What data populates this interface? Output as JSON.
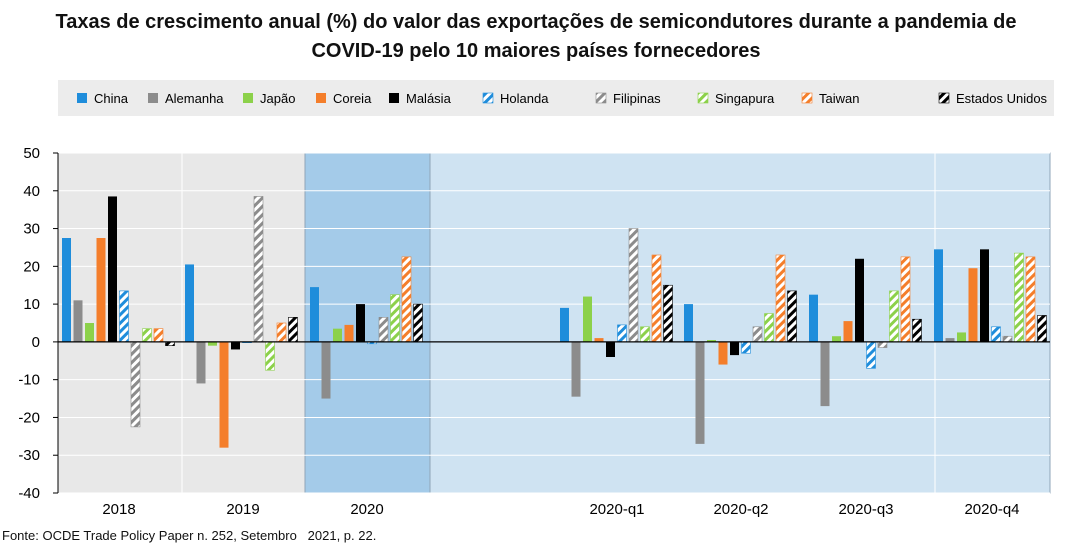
{
  "title_line1": "Taxas de crescimento anual (%) do valor das exportações de semicondutores durante a pandemia de",
  "title_line2": "COVID-19 pelo 10 maiores países fornecedores",
  "source": "Fonte: OCDE Trade Policy Paper n. 252, Setembro   2021, p. 22.",
  "colors": {
    "China": "#1f8ddb",
    "Alemanha": "#8c8c8c",
    "Japão": "#8cd14a",
    "Coreia": "#f47e2b",
    "Malásia": "#000000",
    "panel_grey": "#e8e8e8",
    "panel_dark_blue": "#a4cbe9",
    "panel_light_blue": "#cfe3f2"
  },
  "chart_data": {
    "type": "bar",
    "ylim": [
      -40,
      50
    ],
    "yticks": [
      50,
      40,
      30,
      20,
      10,
      0,
      -10,
      -20,
      -30,
      -40
    ],
    "grid": true,
    "legend_position": "top",
    "categories": [
      "2018",
      "2019",
      "2020",
      "2020-q1",
      "2020-q2",
      "2020-q3",
      "2020-q4"
    ],
    "series": [
      {
        "name": "China",
        "pattern": "solid",
        "values": [
          27.5,
          20.5,
          14.5,
          9,
          10,
          12.5,
          24.5
        ]
      },
      {
        "name": "Alemanha",
        "pattern": "solid",
        "values": [
          11,
          -11,
          -15,
          -14.5,
          -27,
          -17,
          1
        ]
      },
      {
        "name": "Japão",
        "pattern": "solid",
        "values": [
          5,
          -1,
          3.5,
          12,
          0.5,
          1.5,
          2.5
        ]
      },
      {
        "name": "Coreia",
        "pattern": "solid",
        "values": [
          27.5,
          -28,
          4.5,
          1,
          -6,
          5.5,
          19.5
        ]
      },
      {
        "name": "Malásia",
        "pattern": "solid",
        "values": [
          38.5,
          -2,
          10,
          -4,
          -3.5,
          22,
          24.5
        ]
      },
      {
        "name": "Holanda",
        "pattern": "hatched",
        "values": [
          13.5,
          0,
          -0.5,
          4.5,
          -3,
          -7,
          4
        ]
      },
      {
        "name": "Filipinas",
        "pattern": "hatched",
        "values": [
          -22.5,
          38.5,
          6.5,
          30,
          4,
          -1.5,
          1.5
        ]
      },
      {
        "name": "Singapura",
        "pattern": "hatched",
        "values": [
          3.5,
          -7.5,
          12.5,
          4,
          7.5,
          13.5,
          23.5
        ]
      },
      {
        "name": "Taiwan",
        "pattern": "hatched",
        "values": [
          3.5,
          5,
          22.5,
          23,
          23,
          22.5,
          22.5
        ]
      },
      {
        "name": "Estados Unidos",
        "pattern": "hatched",
        "values": [
          -1,
          6.5,
          10,
          15,
          13.5,
          6,
          7
        ]
      }
    ]
  }
}
